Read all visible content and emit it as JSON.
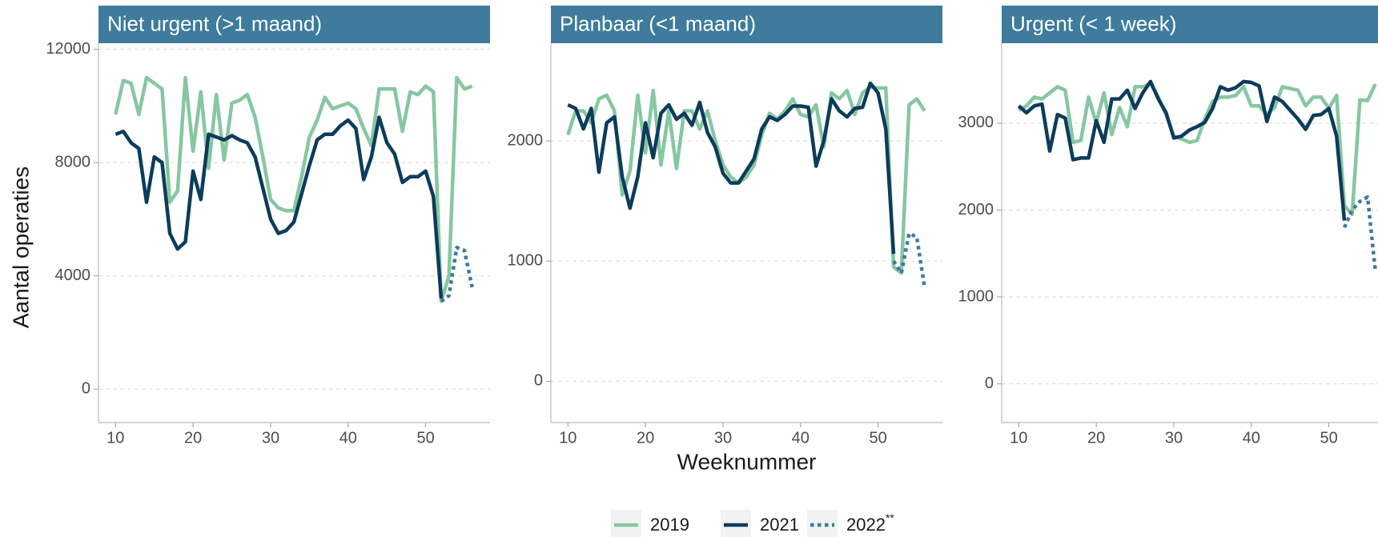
{
  "chart_data": [
    {
      "type": "line",
      "title": "Niet urgent (>1 maand)",
      "y_label": "Aantal operaties",
      "x": [
        10,
        11,
        12,
        13,
        14,
        15,
        16,
        17,
        18,
        19,
        20,
        21,
        22,
        23,
        24,
        25,
        26,
        27,
        28,
        29,
        30,
        31,
        32,
        33,
        34,
        35,
        36,
        37,
        38,
        39,
        40,
        41,
        42,
        43,
        44,
        45,
        46,
        47,
        48,
        49,
        50,
        51,
        52,
        53,
        54,
        55,
        56
      ],
      "xlim": [
        7.8,
        58.3
      ],
      "xticks": [
        10,
        20,
        30,
        40,
        50
      ],
      "ylim": [
        -1180,
        12215
      ],
      "yticks": [
        0,
        4000,
        8000,
        12000
      ],
      "grid": true,
      "series": [
        {
          "name": "2019",
          "color": "#86c7a1",
          "line_style": "solid",
          "values": [
            9700,
            10900,
            10800,
            9700,
            11000,
            10800,
            10600,
            6600,
            7000,
            11000,
            8400,
            10500,
            7800,
            10400,
            8100,
            10100,
            10200,
            10400,
            9600,
            8200,
            6700,
            6400,
            6300,
            6300,
            7500,
            8900,
            9500,
            10300,
            9900,
            10000,
            10100,
            9900,
            9200,
            8600,
            10600,
            10600,
            10600,
            9100,
            10500,
            10400,
            10700,
            10500,
            3100,
            4000,
            11000,
            10600,
            10700
          ]
        },
        {
          "name": "2021",
          "color": "#0c3c5b",
          "line_style": "solid",
          "values": [
            9000,
            9100,
            8700,
            8500,
            6600,
            8200,
            8000,
            5500,
            4950,
            5200,
            7700,
            6700,
            9000,
            8900,
            8800,
            8950,
            8800,
            8700,
            8200,
            7100,
            6000,
            5500,
            5600,
            5900,
            6900,
            7900,
            8800,
            9000,
            9000,
            9300,
            9500,
            9200,
            7400,
            8200,
            9600,
            8700,
            8300,
            7300,
            7500,
            7500,
            7700,
            6800,
            3200,
            null,
            null,
            null,
            null
          ]
        },
        {
          "name": "2022",
          "name_note": "**",
          "color": "#3e7b9c",
          "line_style": "dotted",
          "values": [
            null,
            null,
            null,
            null,
            null,
            null,
            null,
            null,
            null,
            null,
            null,
            null,
            null,
            null,
            null,
            null,
            null,
            null,
            null,
            null,
            null,
            null,
            null,
            null,
            null,
            null,
            null,
            null,
            null,
            null,
            null,
            null,
            null,
            null,
            null,
            null,
            null,
            null,
            null,
            null,
            null,
            null,
            3100,
            3300,
            5000,
            4900,
            3600
          ]
        }
      ]
    },
    {
      "type": "line",
      "title": "Planbaar (<1 maand)",
      "x_label": "Weeknummer",
      "x": [
        10,
        11,
        12,
        13,
        14,
        15,
        16,
        17,
        18,
        19,
        20,
        21,
        22,
        23,
        24,
        25,
        26,
        27,
        28,
        29,
        30,
        31,
        32,
        33,
        34,
        35,
        36,
        37,
        38,
        39,
        40,
        41,
        42,
        43,
        44,
        45,
        46,
        47,
        48,
        49,
        50,
        51,
        52,
        53,
        54,
        55,
        56
      ],
      "xlim": [
        7.8,
        58.3
      ],
      "xticks": [
        10,
        20,
        30,
        40,
        50
      ],
      "ylim": [
        -344,
        2813
      ],
      "yticks": [
        0,
        1000,
        2000
      ],
      "grid": true,
      "series": [
        {
          "name": "2019",
          "color": "#86c7a1",
          "line_style": "solid",
          "values": [
            2050,
            2250,
            2250,
            2150,
            2350,
            2380,
            2250,
            1550,
            1750,
            2380,
            1900,
            2420,
            1800,
            2250,
            1770,
            2250,
            2250,
            2100,
            2250,
            2000,
            1800,
            1700,
            1650,
            1700,
            1800,
            2050,
            2230,
            2180,
            2250,
            2350,
            2220,
            2200,
            2300,
            1950,
            2400,
            2350,
            2420,
            2220,
            2400,
            2450,
            2440,
            2440,
            950,
            900,
            2300,
            2350,
            2250
          ]
        },
        {
          "name": "2021",
          "color": "#0c3c5b",
          "line_style": "solid",
          "values": [
            2300,
            2270,
            2100,
            2270,
            1740,
            2150,
            2200,
            1700,
            1440,
            1700,
            2150,
            1860,
            2230,
            2300,
            2180,
            2230,
            2130,
            2320,
            2070,
            1950,
            1730,
            1650,
            1650,
            1750,
            1850,
            2100,
            2200,
            2170,
            2220,
            2290,
            2290,
            2280,
            1790,
            2000,
            2350,
            2250,
            2200,
            2270,
            2280,
            2480,
            2400,
            2100,
            1060,
            null,
            null,
            null,
            null
          ]
        },
        {
          "name": "2022",
          "color": "#3e7b9c",
          "line_style": "dotted",
          "values": [
            null,
            null,
            null,
            null,
            null,
            null,
            null,
            null,
            null,
            null,
            null,
            null,
            null,
            null,
            null,
            null,
            null,
            null,
            null,
            null,
            null,
            null,
            null,
            null,
            null,
            null,
            null,
            null,
            null,
            null,
            null,
            null,
            null,
            null,
            null,
            null,
            null,
            null,
            null,
            null,
            null,
            null,
            1000,
            900,
            1230,
            1200,
            780
          ]
        }
      ]
    },
    {
      "type": "line",
      "title": "Urgent (< 1 week)",
      "x": [
        10,
        11,
        12,
        13,
        14,
        15,
        16,
        17,
        18,
        19,
        20,
        21,
        22,
        23,
        24,
        25,
        26,
        27,
        28,
        29,
        30,
        31,
        32,
        33,
        34,
        35,
        36,
        37,
        38,
        39,
        40,
        41,
        42,
        43,
        44,
        45,
        46,
        47,
        48,
        49,
        50,
        51,
        52,
        53,
        54,
        55,
        56
      ],
      "xlim": [
        7.8,
        58.3
      ],
      "xticks": [
        10,
        20,
        30,
        40,
        50
      ],
      "ylim": [
        -446,
        3921
      ],
      "yticks": [
        0,
        1000,
        2000,
        3000
      ],
      "grid": true,
      "series": [
        {
          "name": "2019",
          "color": "#86c7a1",
          "line_style": "solid",
          "values": [
            3150,
            3200,
            3300,
            3280,
            3350,
            3420,
            3380,
            2780,
            2800,
            3300,
            3000,
            3350,
            2870,
            3180,
            2960,
            3420,
            3420,
            3460,
            3300,
            3100,
            2850,
            2820,
            2780,
            2800,
            3050,
            3250,
            3300,
            3300,
            3320,
            3420,
            3200,
            3200,
            3100,
            3180,
            3420,
            3400,
            3380,
            3200,
            3300,
            3300,
            3170,
            3320,
            2050,
            1950,
            3270,
            3260,
            3450
          ]
        },
        {
          "name": "2021",
          "color": "#0c3c5b",
          "line_style": "solid",
          "values": [
            3200,
            3120,
            3200,
            3220,
            2680,
            3100,
            3060,
            2580,
            2600,
            2600,
            3030,
            2780,
            3280,
            3280,
            3380,
            3170,
            3350,
            3480,
            3280,
            3120,
            2830,
            2850,
            2920,
            2960,
            3010,
            3170,
            3420,
            3380,
            3410,
            3480,
            3470,
            3430,
            3020,
            3300,
            3250,
            3150,
            3050,
            2930,
            3090,
            3100,
            3170,
            2850,
            1880,
            null,
            null,
            null,
            null
          ]
        },
        {
          "name": "2022",
          "color": "#3e7b9c",
          "line_style": "dotted",
          "values": [
            null,
            null,
            null,
            null,
            null,
            null,
            null,
            null,
            null,
            null,
            null,
            null,
            null,
            null,
            null,
            null,
            null,
            null,
            null,
            null,
            null,
            null,
            null,
            null,
            null,
            null,
            null,
            null,
            null,
            null,
            null,
            null,
            null,
            null,
            null,
            null,
            null,
            null,
            null,
            null,
            null,
            null,
            1800,
            2000,
            2100,
            2150,
            1300
          ]
        }
      ]
    }
  ]
}
